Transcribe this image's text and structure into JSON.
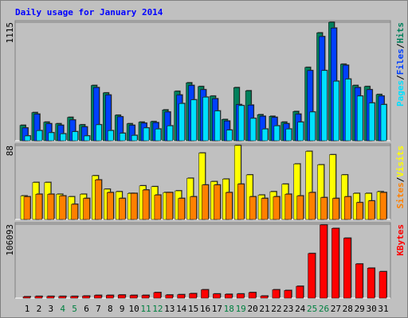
{
  "chart_data": [
    {
      "type": "bar",
      "title": "Daily usage for January 2014",
      "ylim": [
        0,
        1115
      ],
      "yticks": [
        1115
      ],
      "legend_separator": "/",
      "series": [
        {
          "name": "Hits",
          "color": "#00805c",
          "values": [
            145,
            265,
            175,
            160,
            220,
            150,
            520,
            450,
            240,
            160,
            175,
            180,
            290,
            465,
            545,
            510,
            420,
            200,
            500,
            470,
            245,
            230,
            175,
            275,
            690,
            1015,
            1115,
            720,
            520,
            510,
            435
          ]
        },
        {
          "name": "Files",
          "color": "#0040ff",
          "values": [
            120,
            250,
            160,
            145,
            195,
            130,
            500,
            430,
            225,
            145,
            165,
            170,
            270,
            430,
            520,
            480,
            395,
            185,
            340,
            335,
            230,
            220,
            160,
            250,
            660,
            980,
            1060,
            710,
            500,
            480,
            420
          ]
        },
        {
          "name": "Pages",
          "color": "#00e0ff",
          "values": [
            45,
            95,
            75,
            65,
            85,
            45,
            150,
            95,
            70,
            50,
            120,
            110,
            140,
            350,
            385,
            410,
            280,
            100,
            330,
            210,
            110,
            140,
            110,
            175,
            270,
            660,
            560,
            580,
            420,
            355,
            340
          ]
        }
      ]
    },
    {
      "type": "bar",
      "ylim": [
        0,
        88
      ],
      "yticks": [
        88
      ],
      "legend_separator": "/",
      "series": [
        {
          "name": "Visits",
          "color": "#ffff00",
          "values": [
            28,
            44,
            44,
            30,
            27,
            30,
            52,
            36,
            33,
            31,
            40,
            39,
            32,
            34,
            49,
            79,
            45,
            48,
            88,
            53,
            29,
            33,
            42,
            66,
            81,
            65,
            77,
            53,
            31,
            31,
            33
          ]
        },
        {
          "name": "Sites",
          "color": "#ff8000",
          "values": [
            27,
            30,
            30,
            28,
            18,
            25,
            47,
            32,
            25,
            31,
            35,
            29,
            32,
            25,
            27,
            41,
            41,
            32,
            42,
            27,
            25,
            27,
            30,
            28,
            32,
            26,
            25,
            27,
            20,
            22,
            32
          ]
        }
      ]
    },
    {
      "type": "bar",
      "ylim": [
        0,
        106093
      ],
      "yticks": [
        106093
      ],
      "categories": [
        "1",
        "2",
        "3",
        "4",
        "5",
        "6",
        "7",
        "8",
        "9",
        "10",
        "11",
        "12",
        "13",
        "14",
        "15",
        "16",
        "17",
        "18",
        "19",
        "20",
        "21",
        "22",
        "23",
        "24",
        "25",
        "26",
        "27",
        "28",
        "29",
        "30",
        "31"
      ],
      "category_label_colors": [
        "#000000",
        "#000000",
        "#000000",
        "#008040",
        "#008040",
        "#000000",
        "#000000",
        "#000000",
        "#000000",
        "#000000",
        "#008040",
        "#008040",
        "#000000",
        "#000000",
        "#000000",
        "#000000",
        "#000000",
        "#008040",
        "#008040",
        "#000000",
        "#000000",
        "#000000",
        "#000000",
        "#000000",
        "#008040",
        "#008040",
        "#000000",
        "#000000",
        "#000000",
        "#000000",
        "#000000"
      ],
      "series": [
        {
          "name": "KBytes",
          "color": "#ff0000",
          "values": [
            2000,
            2500,
            2500,
            2500,
            2500,
            3000,
            4000,
            4000,
            4500,
            4000,
            4000,
            8000,
            4500,
            5000,
            6500,
            12000,
            6000,
            5500,
            6000,
            8000,
            3000,
            12000,
            11000,
            17000,
            64000,
            105000,
            100000,
            86000,
            49000,
            43000,
            38000
          ]
        }
      ]
    }
  ]
}
